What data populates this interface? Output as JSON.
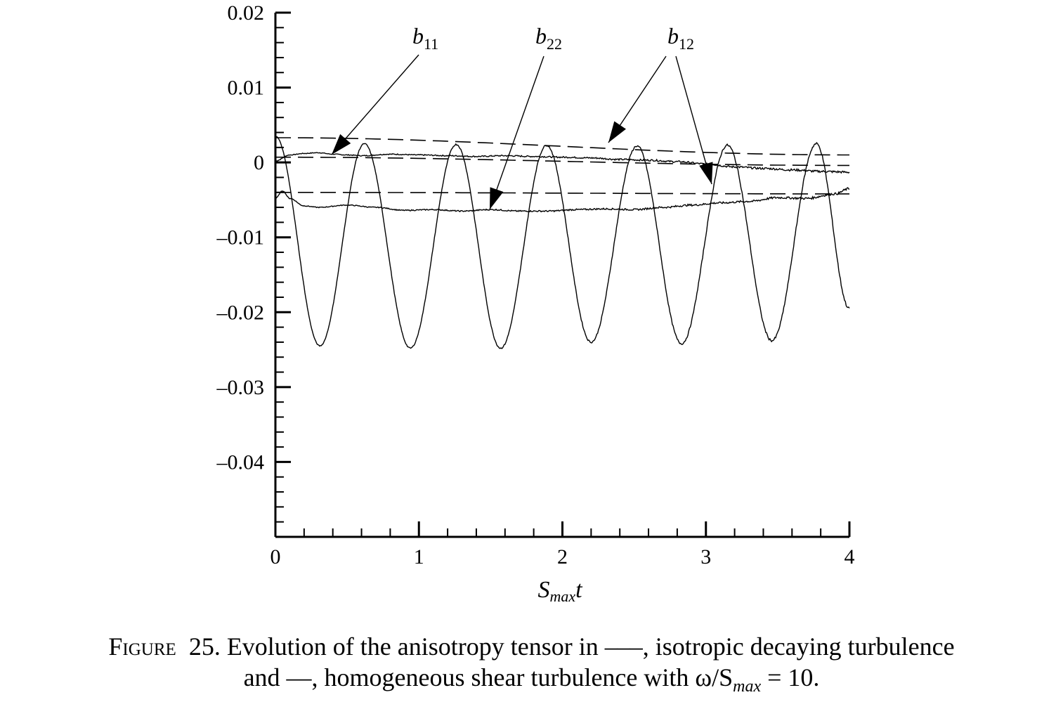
{
  "chart_data": {
    "type": "line",
    "title": "",
    "xlabel": "S_max t",
    "xlabel_main": "S",
    "xlabel_sub": "max",
    "xlabel_tail": "t",
    "ylabel": "",
    "xlim": [
      0,
      4
    ],
    "ylim": [
      -0.05,
      0.02
    ],
    "x_ticks": [
      0,
      1,
      2,
      3,
      4
    ],
    "x_tick_labels": [
      "0",
      "1",
      "2",
      "3",
      "4"
    ],
    "y_ticks": [
      0.02,
      0.01,
      0,
      -0.01,
      -0.02,
      -0.03,
      -0.04
    ],
    "y_tick_labels": [
      "0.02",
      "0.01",
      "0",
      "–0.01",
      "–0.02",
      "–0.03",
      "–0.04"
    ],
    "grid": false,
    "annotations": [
      {
        "label": "b",
        "sub": "11",
        "series": "b11"
      },
      {
        "label": "b",
        "sub": "22",
        "series": "b22"
      },
      {
        "label": "b",
        "sub": "12",
        "series": "b12"
      }
    ],
    "series": [
      {
        "id": "b11_iso",
        "style": "dashed",
        "x": [
          0,
          4
        ],
        "y": [
          0.0007,
          -0.0004
        ]
      },
      {
        "id": "b22_iso",
        "style": "dashed",
        "x": [
          0,
          4
        ],
        "y": [
          -0.004,
          -0.0042
        ]
      },
      {
        "id": "b12_iso",
        "style": "dashed",
        "x": [
          0,
          4
        ],
        "y": [
          0.0033,
          0.001
        ]
      },
      {
        "id": "b11_shear",
        "style": "solid",
        "x": [
          0,
          0.1,
          0.2,
          0.3,
          0.4,
          0.5,
          0.6,
          0.8,
          1.0,
          1.2,
          1.4,
          1.6,
          1.8,
          2.0,
          2.2,
          2.4,
          2.6,
          2.8,
          3.0,
          3.2,
          3.4,
          3.6,
          3.8,
          4.0
        ],
        "y": [
          0.0002,
          0.001,
          0.0012,
          0.0013,
          0.0011,
          0.001,
          0.0009,
          0.0011,
          0.001,
          0.0009,
          0.0008,
          0.0009,
          0.0008,
          0.0007,
          0.0006,
          0.0004,
          0.0003,
          0.0001,
          -0.0002,
          -0.0006,
          -0.0008,
          -0.001,
          -0.0012,
          -0.0013
        ]
      },
      {
        "id": "b22_shear",
        "style": "solid",
        "x": [
          0,
          0.05,
          0.1,
          0.2,
          0.3,
          0.5,
          0.7,
          0.9,
          1.1,
          1.3,
          1.5,
          1.7,
          1.9,
          2.1,
          2.3,
          2.5,
          2.7,
          2.9,
          3.1,
          3.3,
          3.5,
          3.7,
          3.9,
          4.0
        ],
        "y": [
          -0.0048,
          -0.0038,
          -0.0048,
          -0.0058,
          -0.006,
          -0.0057,
          -0.006,
          -0.0064,
          -0.0063,
          -0.0065,
          -0.0063,
          -0.0065,
          -0.0065,
          -0.0063,
          -0.0062,
          -0.0063,
          -0.006,
          -0.0057,
          -0.0054,
          -0.0052,
          -0.0047,
          -0.0048,
          -0.0042,
          -0.0035
        ]
      },
      {
        "id": "b12_shear",
        "style": "solid",
        "oscillating": true,
        "amplitude_min": -0.0248,
        "amplitude_max": 0.0025,
        "period": 0.63,
        "x": [
          0,
          0.31,
          0.62,
          0.94,
          1.26,
          1.57,
          1.89,
          2.2,
          2.52,
          2.83,
          3.15,
          3.46,
          3.77,
          4.0
        ],
        "y": [
          0.0035,
          -0.0245,
          0.0025,
          -0.0248,
          0.0024,
          -0.0248,
          0.0023,
          -0.024,
          0.0022,
          -0.0242,
          0.0023,
          -0.0238,
          0.0025,
          -0.0195
        ]
      }
    ]
  },
  "caption": {
    "figure_word": "Figure",
    "number": "25.",
    "line1": "Evolution of the anisotropy tensor in ‒‒‒, isotropic decaying turbulence",
    "line2": "and —, homogeneous shear turbulence with ω/S",
    "line2_sub": "max",
    "line2_tail": " = 10."
  }
}
